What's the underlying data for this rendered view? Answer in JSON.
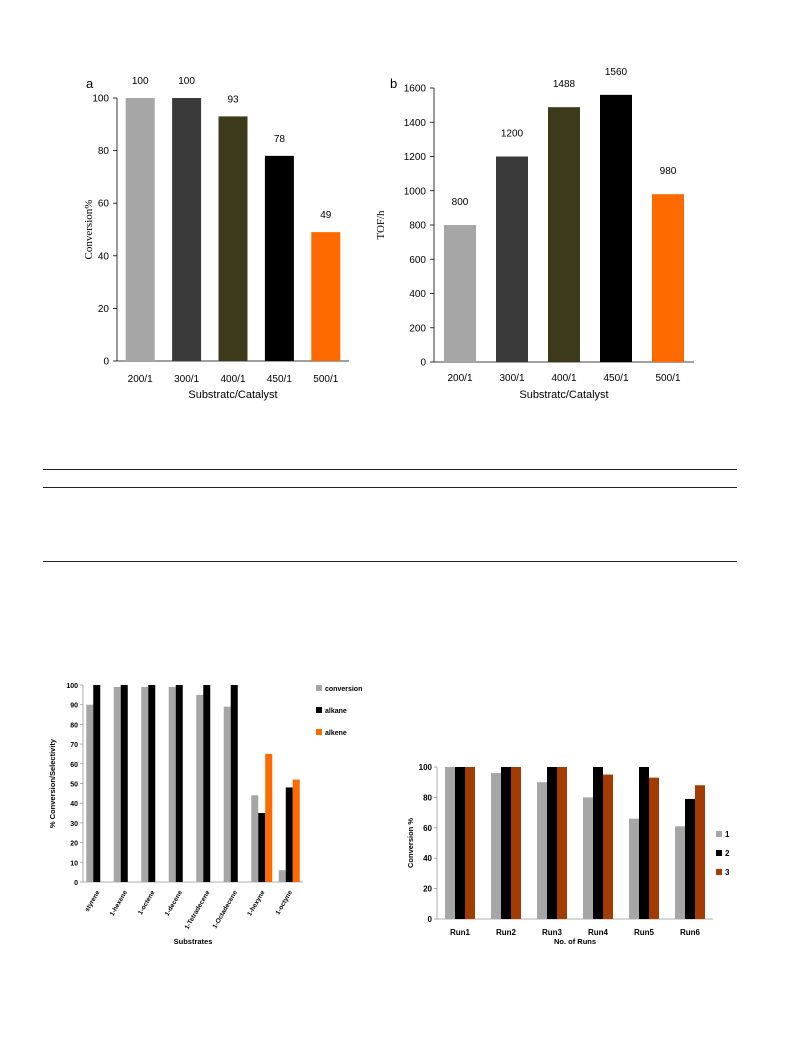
{
  "chart_data": [
    {
      "id": "a",
      "type": "bar",
      "panel_label": "a",
      "categories": [
        "200/1",
        "300/1",
        "400/1",
        "450/1",
        "500/1"
      ],
      "values": [
        100,
        100,
        93,
        78,
        49
      ],
      "data_labels": [
        "100",
        "100",
        "93",
        "78",
        "49"
      ],
      "colors": [
        "#a6a6a6",
        "#3a3a3a",
        "#3d3a1c",
        "#000000",
        "#ff6a00"
      ],
      "xlabel": "Substratc/Catalyst",
      "ylabel": "Conversion%",
      "ylim": [
        0,
        100
      ],
      "yticks": [
        "0",
        "20",
        "40",
        "60",
        "80",
        "100"
      ],
      "grid": false,
      "legend": "none"
    },
    {
      "id": "b",
      "type": "bar",
      "panel_label": "b",
      "categories": [
        "200/1",
        "300/1",
        "400/1",
        "450/1",
        "500/1"
      ],
      "values": [
        800,
        1200,
        1488,
        1560,
        980
      ],
      "data_labels": [
        "800",
        "1200",
        "1488",
        "1560",
        "980"
      ],
      "colors": [
        "#a6a6a6",
        "#3a3a3a",
        "#3d3a1c",
        "#000000",
        "#ff6a00"
      ],
      "xlabel": "Substratc/Catalyst",
      "ylabel": "TOF/h",
      "ylim": [
        0,
        1600
      ],
      "yticks": [
        "0",
        "200",
        "400",
        "600",
        "800",
        "1000",
        "1200",
        "1400",
        "1600"
      ],
      "grid": false,
      "legend": "none"
    },
    {
      "id": "c",
      "type": "bar",
      "categories": [
        "styrene",
        "1-hexene",
        "1-octene",
        "1-decene",
        "1-Tetradecene",
        "1-Octadecene",
        "1-hexyne",
        "1-octyne"
      ],
      "series": [
        {
          "name": "conversion",
          "color": "#a6a6a6",
          "values": [
            90,
            99,
            99,
            99,
            95,
            89,
            44,
            6
          ]
        },
        {
          "name": "alkane",
          "color": "#000000",
          "values": [
            100,
            100,
            100,
            100,
            100,
            100,
            35,
            48
          ]
        },
        {
          "name": "alkene",
          "color": "#ff6a00",
          "values": [
            0,
            0,
            0,
            0,
            0,
            0,
            65,
            52
          ]
        }
      ],
      "xlabel": "Substrates",
      "ylabel": "% Conversion/Selectivity",
      "ylim": [
        0,
        100
      ],
      "yticks": [
        "0",
        "10",
        "20",
        "30",
        "40",
        "50",
        "60",
        "70",
        "80",
        "90",
        "100"
      ],
      "grid": false,
      "legend": "right"
    },
    {
      "id": "d",
      "type": "bar",
      "categories": [
        "Run1",
        "Run2",
        "Run3",
        "Run4",
        "Run5",
        "Run6"
      ],
      "series": [
        {
          "name": "1",
          "color": "#a6a6a6",
          "values": [
            100,
            96,
            90,
            80,
            66,
            61
          ]
        },
        {
          "name": "2",
          "color": "#000000",
          "values": [
            100,
            100,
            100,
            100,
            100,
            79
          ]
        },
        {
          "name": "3",
          "color": "#a33c00",
          "values": [
            100,
            100,
            100,
            95,
            93,
            88
          ]
        }
      ],
      "xlabel": "No. of Runs",
      "ylabel": "Conversion %",
      "ylim": [
        0,
        100
      ],
      "yticks": [
        "0",
        "20",
        "40",
        "60",
        "80",
        "100"
      ],
      "grid": false,
      "legend": "right"
    }
  ]
}
